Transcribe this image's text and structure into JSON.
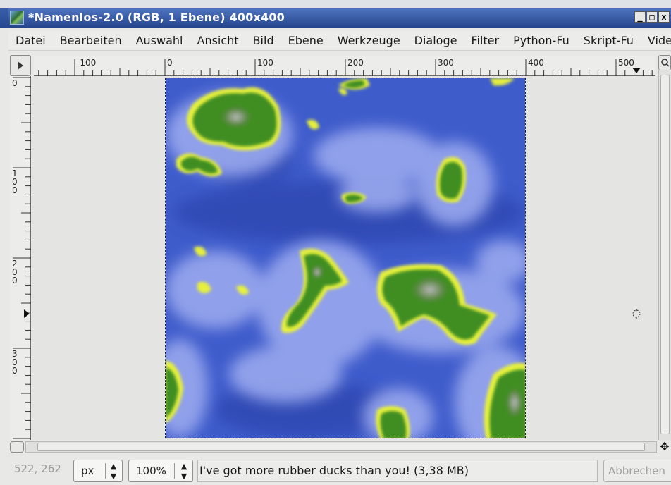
{
  "window": {
    "title": "*Namenlos-2.0 (RGB, 1 Ebene) 400x400",
    "controls": {
      "minimize": "_",
      "maximize": "□",
      "close": "x"
    }
  },
  "menubar": {
    "items": [
      "Datei",
      "Bearbeiten",
      "Auswahl",
      "Ansicht",
      "Bild",
      "Ebene",
      "Werkzeuge",
      "Dialoge",
      "Filter",
      "Python-Fu",
      "Skript-Fu",
      "Video"
    ]
  },
  "rulers": {
    "horizontal_labels": [
      "-100",
      "0",
      "100",
      "200",
      "300",
      "400",
      "500"
    ],
    "vertical_labels": [
      "0",
      "100",
      "200",
      "300"
    ]
  },
  "canvas": {
    "image_description_icon": "plasma-terrain-image",
    "colors": {
      "water": "#3b57c4",
      "shallow": "#8d9fe6",
      "coast": "#e7f24a",
      "land": "#3d8a1e",
      "peak": "#a8a8a8"
    }
  },
  "statusbar": {
    "coordinates": "522, 262",
    "unit": "px",
    "zoom": "100%",
    "message": "I've got more rubber ducks than you! (3,38 MB)",
    "cancel_label": "Abbrechen"
  },
  "icons": {
    "window_icon": "gimp-image-icon",
    "nav": "navigate-icon",
    "move": "move-cross-icon",
    "zoom": "zoom-icon",
    "pointer": "crosshair-icon"
  }
}
